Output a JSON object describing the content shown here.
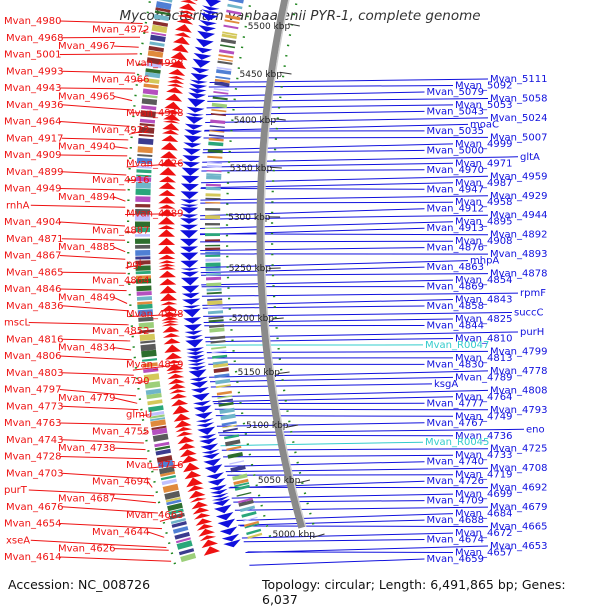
{
  "map": {
    "title": "Mycobacterium vanbaalenii PYR-1, complete genome",
    "accession": "Accession: NC_008726",
    "topology": "Topology: circular; Length: 6,491,865 bp; Genes: 6,037",
    "colors": {
      "forward": "#ee1111",
      "reverse": "#1010dd",
      "rna": "#33cccc",
      "backbone": "#8a8a8a",
      "tick": "#228822",
      "scale_text": "#222222"
    },
    "scale_labels": [
      "5500 kbp",
      "5450 kbp",
      "5400 kbp",
      "5350 kbp",
      "5300 kbp",
      "5250 kbp",
      "5200 kbp",
      "5150 kbp",
      "5100 kbp",
      "5050 kbp",
      "5000 kbp"
    ],
    "left_labels": [
      "Mvan_4980",
      "Mvan_4972",
      "Mvan_4968",
      "Mvan_4967",
      "Mvan_5001",
      "Mvan_4998",
      "Mvan_4993",
      "Mvan_4966",
      "Mvan_4943",
      "Mvan_4965",
      "Mvan_4936",
      "Mvan_4948",
      "Mvan_4964",
      "Mvan_4922",
      "Mvan_4917",
      "Mvan_4940",
      "Mvan_4909",
      "Mvan_4926",
      "Mvan_4899",
      "Mvan_4916",
      "Mvan_4949",
      "Mvan_4894",
      "rnhA",
      "Mvan_4889",
      "Mvan_4904",
      "Mvan_4887",
      "Mvan_4871",
      "Mvan_4885",
      "Mvan_4867",
      "pgi",
      "Mvan_4865",
      "Mvan_4864",
      "Mvan_4846",
      "Mvan_4849",
      "Mvan_4836",
      "Mvan_4828",
      "mscL",
      "Mvan_4852",
      "Mvan_4816",
      "Mvan_4834",
      "Mvan_4806",
      "Mvan_4819",
      "Mvan_4803",
      "Mvan_4790",
      "Mvan_4797",
      "Mvan_4779",
      "Mvan_4773",
      "glmU",
      "Mvan_4763",
      "Mvan_4755",
      "Mvan_4743",
      "Mvan_4738",
      "Mvan_4728",
      "Mvan_4716",
      "Mvan_4703",
      "Mvan_4694",
      "purT",
      "Mvan_4687",
      "Mvan_4676",
      "Mvan_4663",
      "Mvan_4654",
      "Mvan_4644",
      "xseA",
      "Mvan_4626",
      "Mvan_4614"
    ],
    "right_labels": [
      "Mvan_5111",
      "Mvan_5092",
      "Mvan_5079",
      "Mvan_5058",
      "Mvan_5053",
      "Mvan_5043",
      "Mvan_5024",
      "moaC",
      "Mvan_5035",
      "Mvan_5007",
      "Mvan_4999",
      "Mvan_5000",
      "gltA",
      "Mvan_4971",
      "Mvan_4970",
      "Mvan_4959",
      "Mvan_4987",
      "Mvan_4947",
      "Mvan_4929",
      "Mvan_4958",
      "Mvan_4912",
      "Mvan_4944",
      "Mvan_4895",
      "Mvan_4913",
      "Mvan_4892",
      "Mvan_4908",
      "Mvan_4876",
      "Mvan_4893",
      "mhpA",
      "Mvan_4863",
      "Mvan_4878",
      "Mvan_4854",
      "Mvan_4869",
      "rpmF",
      "Mvan_4843",
      "Mvan_4858",
      "succC",
      "Mvan_4825",
      "Mvan_4844",
      "purH",
      "Mvan_4810",
      "Mvan_R0047",
      "Mvan_4799",
      "Mvan_4813",
      "Mvan_4830",
      "Mvan_4778",
      "Mvan_4789",
      "ksgA",
      "Mvan_4808",
      "Mvan_4764",
      "Mvan_4777",
      "Mvan_4793",
      "Mvan_4749",
      "Mvan_4767",
      "eno",
      "Mvan_4736",
      "Mvan_R0045",
      "Mvan_4725",
      "Mvan_4733",
      "Mvan_4740",
      "Mvan_4708",
      "Mvan_4719",
      "Mvan_4726",
      "Mvan_4692",
      "Mvan_4699",
      "Mvan_4709",
      "Mvan_4679",
      "Mvan_4684",
      "Mvan_4688",
      "Mvan_4665",
      "Mvan_4672",
      "Mvan_4674",
      "Mvan_4653",
      "Mvan_4657",
      "Mvan_4659"
    ],
    "rna_labels": [
      "Mvan_R0047",
      "Mvan_R0045"
    ]
  }
}
